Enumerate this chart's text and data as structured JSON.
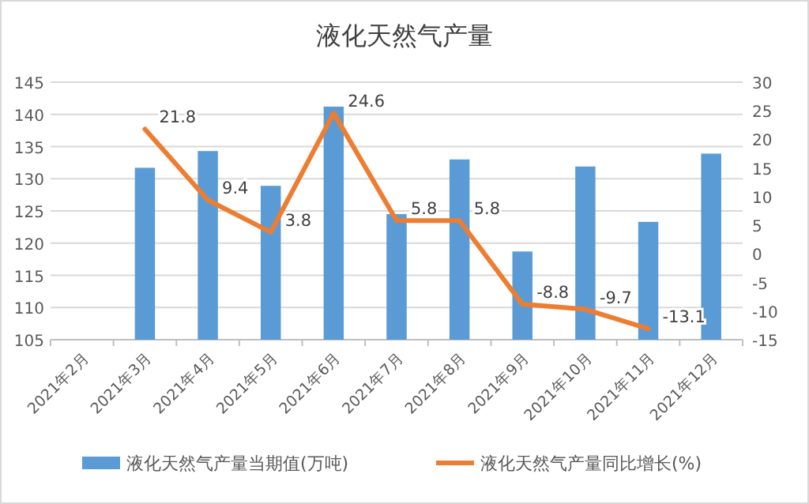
{
  "chart_data": {
    "type": "bar",
    "title": "液化天然气产量",
    "categories": [
      "2021年2月",
      "2021年3月",
      "2021年4月",
      "2021年5月",
      "2021年6月",
      "2021年7月",
      "2021年8月",
      "2021年9月",
      "2021年10月",
      "2021年11月",
      "2021年12月"
    ],
    "series": [
      {
        "name": "液化天然气产量当期值(万吨)",
        "color": "#5b9bd5",
        "values": [
          null,
          131.7,
          134.3,
          128.9,
          141.2,
          124.5,
          133.0,
          118.7,
          131.9,
          123.3,
          133.9
        ]
      },
      {
        "name": "液化天然气产量同比增长(%)",
        "type": "line",
        "axis": "y2",
        "color": "#ed7d31",
        "values": [
          null,
          21.8,
          9.4,
          3.8,
          24.6,
          5.8,
          5.8,
          -8.8,
          -9.7,
          -13.1,
          null
        ],
        "value_labels": [
          null,
          "21.8",
          "9.4",
          "3.8",
          "24.6",
          "5.8",
          "5.8",
          "-8.8",
          "-9.7",
          "-13.1",
          null
        ]
      }
    ],
    "ylim": [
      105,
      145
    ],
    "yticks": [
      105,
      110,
      115,
      120,
      125,
      130,
      135,
      140,
      145
    ],
    "y2lim": [
      -15,
      30
    ],
    "y2ticks": [
      -15,
      -10,
      -5,
      0,
      5,
      10,
      15,
      20,
      25,
      30
    ],
    "grid": "y",
    "legend": "bottom",
    "marker": "none",
    "line_style": "solid"
  }
}
